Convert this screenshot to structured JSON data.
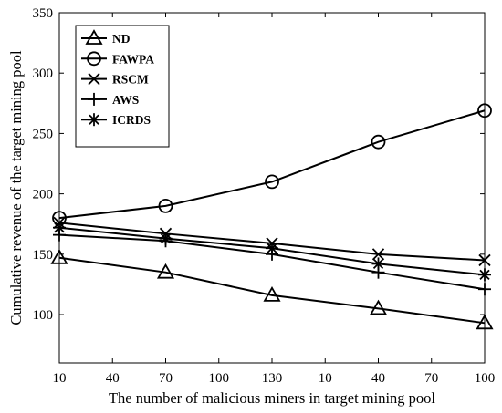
{
  "chart_data": {
    "type": "line",
    "title": "",
    "xlabel": "The number of malicious miners in target mining pool",
    "ylabel": "Cumulative revenue of the target mining pool",
    "x_tick_labels": [
      "10",
      "40",
      "70",
      "100",
      "130",
      "10",
      "40",
      "70",
      "100"
    ],
    "y_ticks": [
      100,
      150,
      200,
      250,
      300,
      350
    ],
    "ylim": [
      60,
      350
    ],
    "x": [
      "10",
      "70",
      "130",
      "40",
      "100"
    ],
    "grid": false,
    "legend_position": "top-left",
    "series": [
      {
        "name": "ND",
        "marker": "triangle",
        "values": [
          147,
          135,
          116,
          105,
          93
        ]
      },
      {
        "name": "FAWPA",
        "marker": "circle",
        "values": [
          180,
          190,
          210,
          243,
          269
        ]
      },
      {
        "name": "RSCM",
        "marker": "x",
        "values": [
          176,
          167,
          159,
          150,
          145
        ]
      },
      {
        "name": "AWS",
        "marker": "plus",
        "values": [
          166,
          161,
          150,
          135,
          121
        ]
      },
      {
        "name": "ICRDS",
        "marker": "asterisk",
        "values": [
          172,
          163,
          155,
          142,
          133
        ]
      }
    ]
  }
}
